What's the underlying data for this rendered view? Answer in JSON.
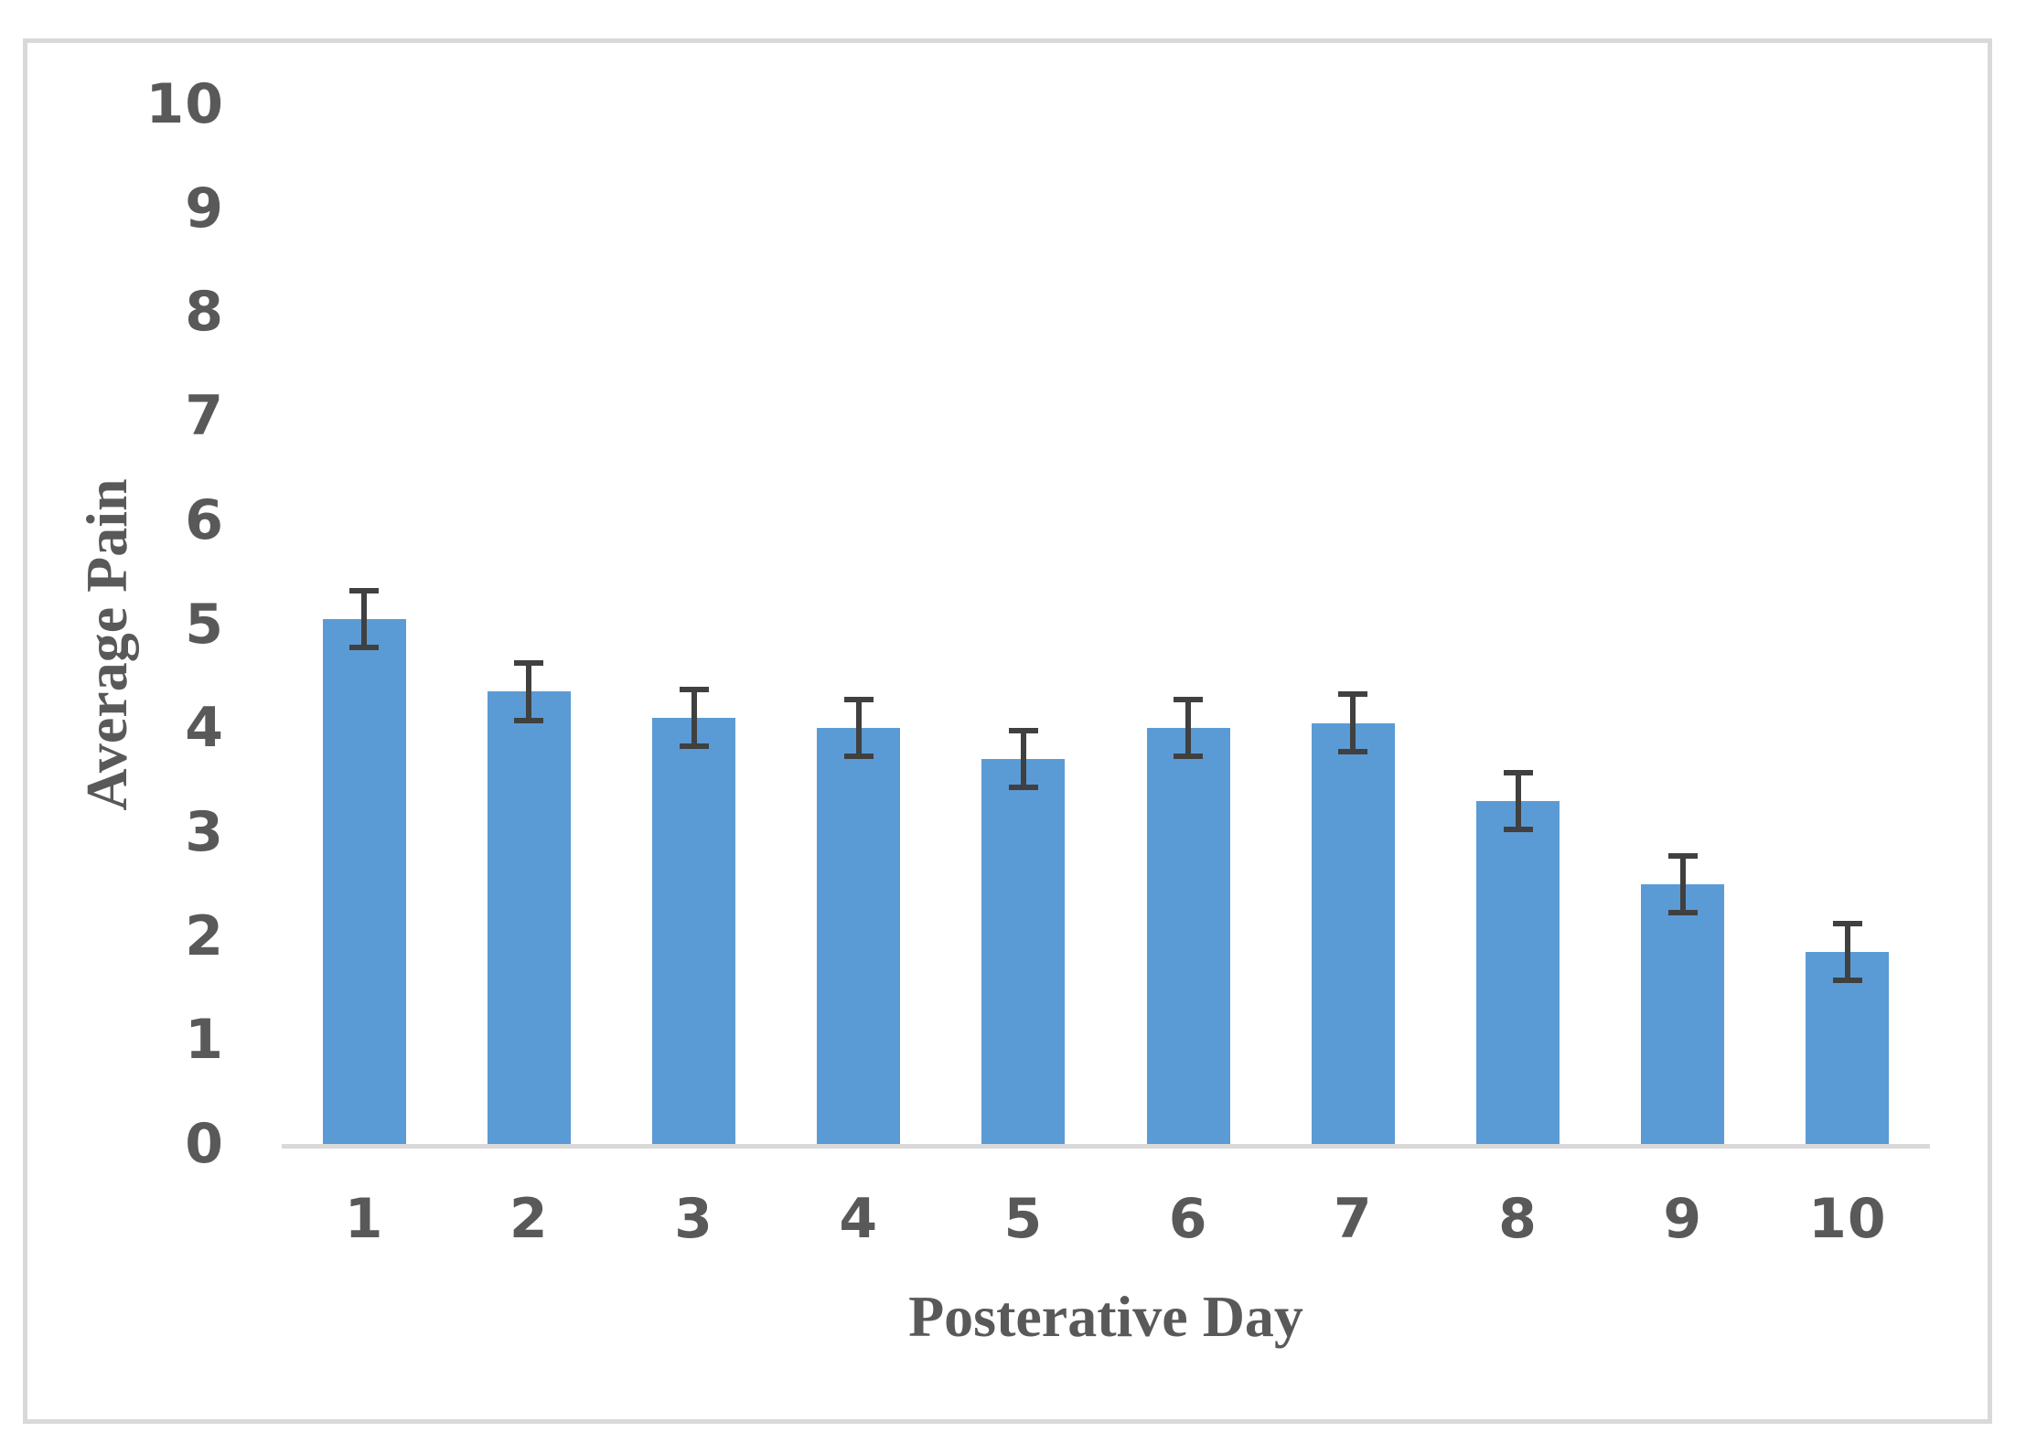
{
  "figure": {
    "background_color": "#ffffff",
    "frame_border_color": "#d9d9d9"
  },
  "chart_data": {
    "type": "bar",
    "title": "",
    "xlabel": "Posterative Day",
    "ylabel": "Average Pain",
    "categories": [
      "1",
      "2",
      "3",
      "4",
      "5",
      "6",
      "7",
      "8",
      "9",
      "10"
    ],
    "series": [
      {
        "name": "Average Pain",
        "values": [
          5.05,
          4.35,
          4.1,
          4.0,
          3.7,
          4.0,
          4.05,
          3.3,
          2.5,
          1.85
        ],
        "error_bars": [
          0.3,
          0.3,
          0.3,
          0.3,
          0.3,
          0.3,
          0.3,
          0.3,
          0.3,
          0.3
        ]
      }
    ],
    "ylim": [
      0,
      10
    ],
    "yticks": [
      0,
      1,
      2,
      3,
      4,
      5,
      6,
      7,
      8,
      9,
      10
    ],
    "grid": false,
    "legend": false,
    "bar_color": "#5b9bd5",
    "error_bar_color": "#404040",
    "axis_line_color": "#d9d9d9",
    "tick_label_color": "#595959",
    "axis_title_color": "#595959"
  }
}
